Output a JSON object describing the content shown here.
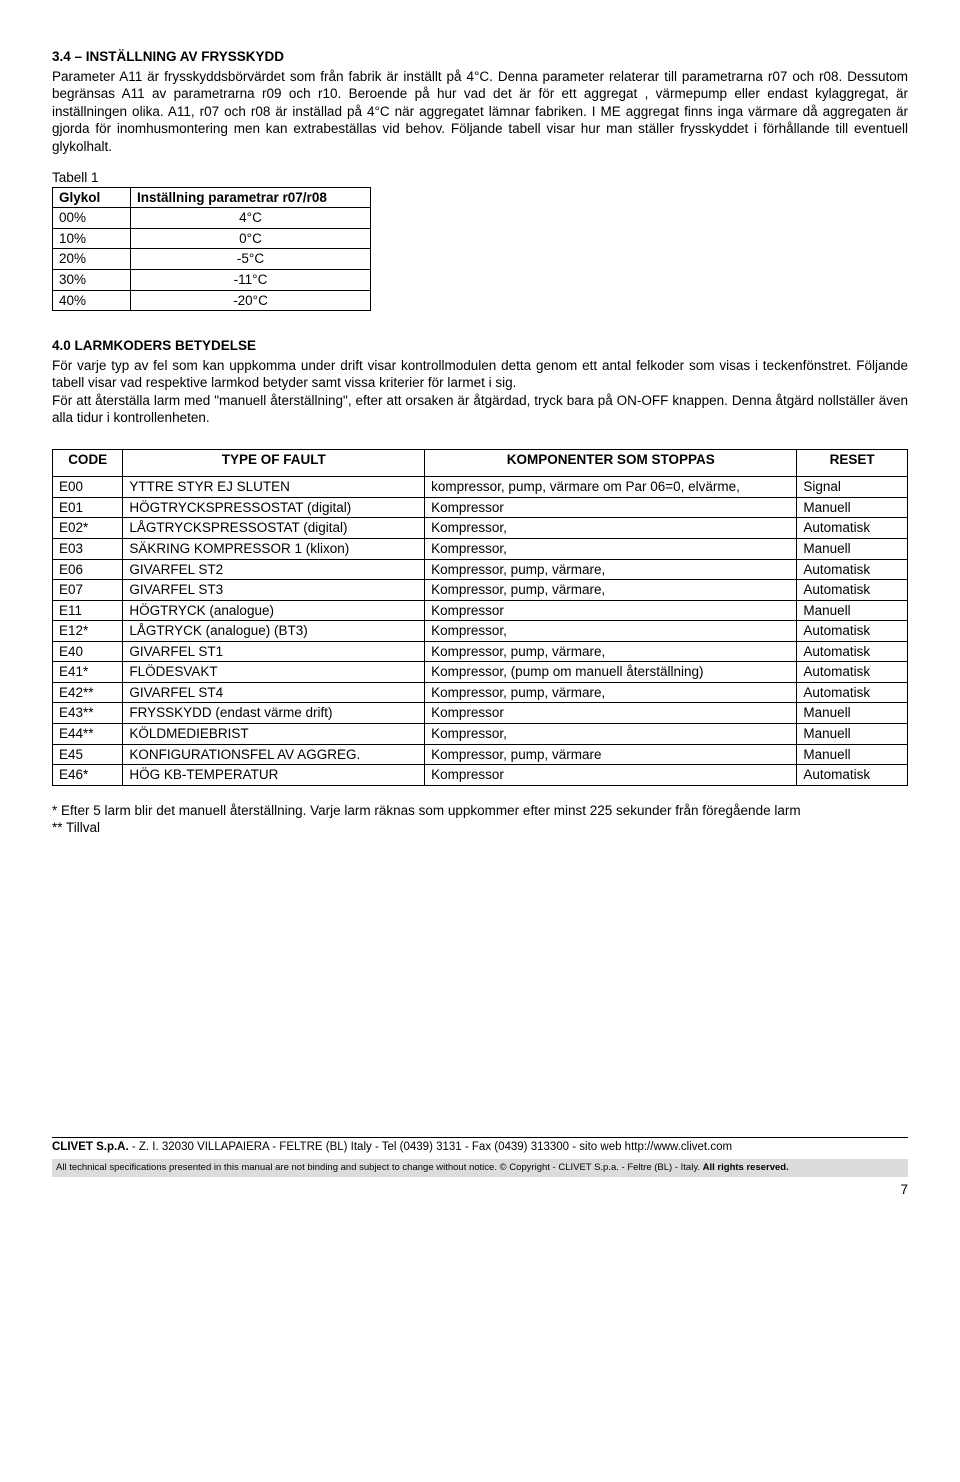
{
  "section34": {
    "title": "3.4 – INSTÄLLNING AV FRYSSKYDD",
    "body": "Parameter A11 är frysskyddsbörvärdet som från fabrik är inställt på 4°C. Denna parameter relaterar till parametrarna r07 och r08. Dessutom begränsas A11 av parametrarna r09 och r10. Beroende på hur vad det är för ett aggregat , värmepump eller endast kylaggregat, är inställningen olika. A11, r07 och r08 är inställad på 4°C när aggregatet lämnar fabriken. I ME aggregat finns inga värmare då aggregaten är gjorda för inomhusmontering men kan extrabeställas vid behov. Följande tabell visar hur man ställer frysskyddet i förhållande till eventuell glykolhalt."
  },
  "table1": {
    "caption": "Tabell 1",
    "headers": [
      "Glykol",
      "Inställning parametrar r07/r08"
    ],
    "rows": [
      [
        "00%",
        "4°C"
      ],
      [
        "10%",
        "0°C"
      ],
      [
        "20%",
        "-5°C"
      ],
      [
        "30%",
        "-11°C"
      ],
      [
        "40%",
        "-20°C"
      ]
    ]
  },
  "section40": {
    "title": "4.0 LARMKODERS BETYDELSE",
    "p1": "För varje typ av fel som kan uppkomma under drift visar kontrollmodulen detta genom ett antal felkoder som visas i teckenfönstret. Följande tabell visar vad respektive larmkod betyder samt vissa kriterier för larmet i sig.",
    "p2": "För att återställa larm med \"manuell återställning\", efter att orsaken är åtgärdad, tryck bara på ON-OFF knappen. Denna åtgärd nollställer även alla tidur i kontrollenheten."
  },
  "table2": {
    "headers": [
      "CODE",
      "TYPE OF FAULT",
      "KOMPONENTER SOM STOPPAS",
      "RESET"
    ],
    "rows": [
      [
        "E00",
        "YTTRE STYR EJ SLUTEN",
        "kompressor, pump, värmare om Par 06=0, elvärme,",
        "Signal"
      ],
      [
        "E01",
        "HÖGTRYCKSPRESSOSTAT (digital)",
        "Kompressor",
        "Manuell"
      ],
      [
        "E02*",
        "LÅGTRYCKSPRESSOSTAT (digital)",
        "Kompressor,",
        "Automatisk"
      ],
      [
        "E03",
        "SÄKRING KOMPRESSOR 1 (klixon)",
        "Kompressor,",
        "Manuell"
      ],
      [
        "E06",
        "GIVARFEL ST2",
        "Kompressor, pump, värmare,",
        "Automatisk"
      ],
      [
        "E07",
        "GIVARFEL ST3",
        "Kompressor, pump, värmare,",
        "Automatisk"
      ],
      [
        "E11",
        "HÖGTRYCK (analogue)",
        "Kompressor",
        "Manuell"
      ],
      [
        "E12*",
        "LÅGTRYCK (analogue) (BT3)",
        "Kompressor,",
        "Automatisk"
      ],
      [
        "E40",
        "GIVARFEL ST1",
        "Kompressor, pump, värmare,",
        "Automatisk"
      ],
      [
        "E41*",
        "FLÖDESVAKT",
        "Kompressor, (pump om manuell återställning)",
        "Automatisk"
      ],
      [
        "E42**",
        "GIVARFEL ST4",
        "Kompressor, pump, värmare,",
        "Automatisk"
      ],
      [
        "E43**",
        "FRYSSKYDD (endast värme drift)",
        "Kompressor",
        "Manuell"
      ],
      [
        "E44**",
        "KÖLDMEDIEBRIST",
        "Kompressor,",
        "Manuell"
      ],
      [
        "E45",
        "KONFIGURATIONSFEL AV AGGREG.",
        "Kompressor, pump, värmare",
        "Manuell"
      ],
      [
        "E46*",
        "HÖG KB-TEMPERATUR",
        "Kompressor",
        "Automatisk"
      ]
    ]
  },
  "notes": {
    "n1": "* Efter 5 larm blir det manuell återställning. Varje larm räknas som uppkommer efter minst 225 sekunder från föregående larm",
    "n2": "** Tillval"
  },
  "footer": {
    "line1a": "CLIVET S.p.A.",
    "line1b": " - Z. I. 32030 VILLAPAIERA - FELTRE (BL) Italy - Tel (0439) 3131 - Fax (0439) 313300 - sito web http://www.clivet.com",
    "bar_a": "All technical specifications presented in this manual are not binding and subject to change without notice. © Copyright - CLIVET S.p.a. - Feltre (BL) - Italy. ",
    "bar_b": "All rights reserved.",
    "page": "7"
  }
}
